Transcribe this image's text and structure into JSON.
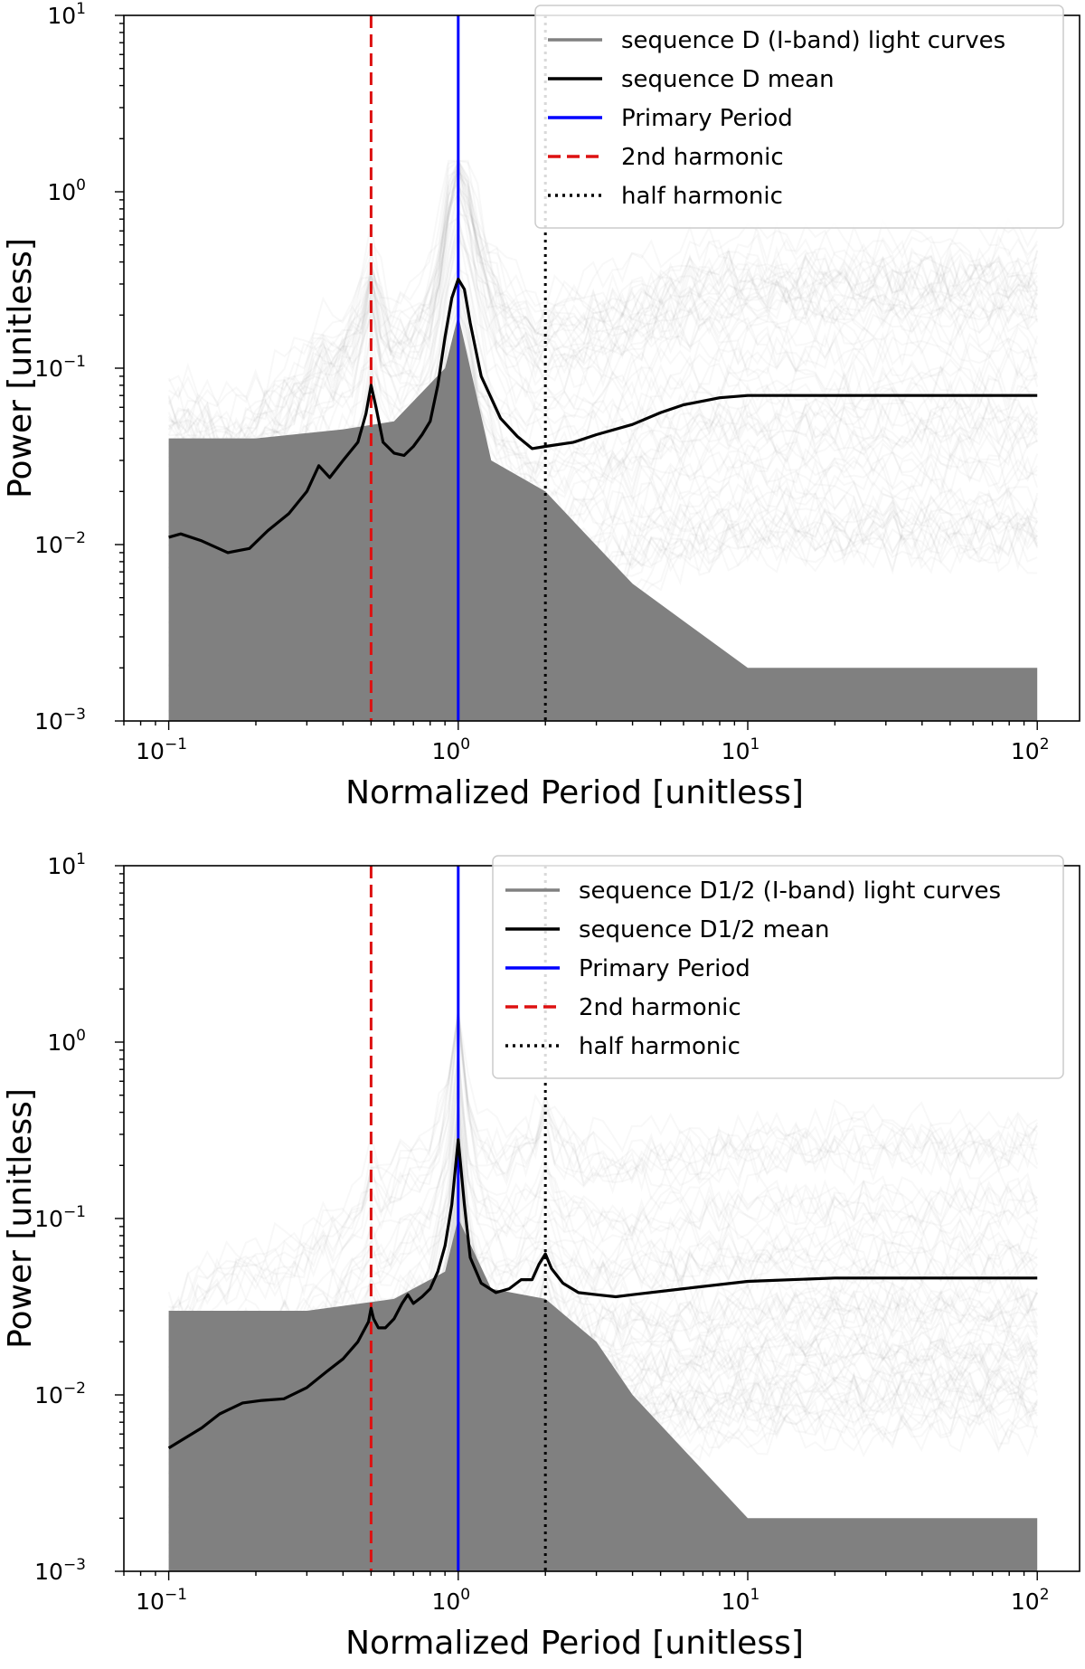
{
  "chart_data": [
    {
      "type": "line",
      "title": "",
      "xlabel": "Normalized Period [unitless]",
      "ylabel": "Power [unitless]",
      "xscale": "log",
      "yscale": "log",
      "xlim": [
        0.07,
        140
      ],
      "ylim": [
        0.001,
        10
      ],
      "x_ticks": [
        "10^-1",
        "10^0",
        "10^1",
        "10^2"
      ],
      "y_ticks": [
        "10^-3",
        "10^-2",
        "10^-1",
        "10^0",
        "10^1"
      ],
      "grid": false,
      "legend_position": "top-right",
      "series": [
        {
          "name": "sequence D (I-band) light curves",
          "color": "#808080",
          "style": "band",
          "x": [
            0.1,
            0.2,
            0.4,
            0.6,
            0.9,
            1.0,
            1.3,
            2.0,
            4.0,
            10,
            100
          ],
          "lower": [
            0.001,
            0.001,
            0.001,
            0.001,
            0.001,
            0.001,
            0.001,
            0.001,
            0.001,
            0.001,
            0.001
          ],
          "upper": [
            0.04,
            0.04,
            0.045,
            0.05,
            0.1,
            0.2,
            0.03,
            0.02,
            0.006,
            0.002,
            0.002
          ]
        },
        {
          "name": "sequence D mean",
          "color": "#000000",
          "style": "solid",
          "x": [
            0.1,
            0.11,
            0.13,
            0.16,
            0.19,
            0.22,
            0.26,
            0.3,
            0.33,
            0.36,
            0.4,
            0.45,
            0.48,
            0.5,
            0.52,
            0.55,
            0.6,
            0.65,
            0.7,
            0.75,
            0.8,
            0.85,
            0.9,
            0.95,
            1.0,
            1.05,
            1.1,
            1.2,
            1.4,
            1.6,
            1.8,
            2.0,
            2.5,
            3.0,
            4.0,
            5.0,
            6.0,
            8.0,
            10,
            20,
            50,
            100
          ],
          "values": [
            0.011,
            0.0115,
            0.0105,
            0.009,
            0.0095,
            0.012,
            0.015,
            0.02,
            0.028,
            0.024,
            0.03,
            0.038,
            0.055,
            0.08,
            0.06,
            0.038,
            0.033,
            0.032,
            0.036,
            0.042,
            0.05,
            0.08,
            0.15,
            0.25,
            0.32,
            0.28,
            0.18,
            0.09,
            0.052,
            0.041,
            0.035,
            0.036,
            0.038,
            0.042,
            0.048,
            0.056,
            0.062,
            0.068,
            0.07,
            0.07,
            0.07,
            0.07
          ]
        },
        {
          "name": "Primary Period",
          "color": "#0000ff",
          "style": "vertical",
          "x": [
            1.0
          ]
        },
        {
          "name": "2nd harmonic",
          "color": "#dd1111",
          "style": "dashed",
          "x": [
            0.5
          ]
        },
        {
          "name": "half harmonic",
          "color": "#000000",
          "style": "dotted",
          "x": [
            2.0
          ]
        }
      ]
    },
    {
      "type": "line",
      "title": "",
      "xlabel": "Normalized Period [unitless]",
      "ylabel": "Power [unitless]",
      "xscale": "log",
      "yscale": "log",
      "xlim": [
        0.07,
        140
      ],
      "ylim": [
        0.001,
        10
      ],
      "x_ticks": [
        "10^-1",
        "10^0",
        "10^1",
        "10^2"
      ],
      "y_ticks": [
        "10^-3",
        "10^-2",
        "10^-1",
        "10^0",
        "10^1"
      ],
      "grid": false,
      "legend_position": "top-right",
      "series": [
        {
          "name": "sequence D1/2 (I-band) light curves",
          "color": "#808080",
          "style": "band",
          "x": [
            0.1,
            0.3,
            0.6,
            0.9,
            1.0,
            1.3,
            2.0,
            3.0,
            4.0,
            10,
            100
          ],
          "lower": [
            0.001,
            0.001,
            0.001,
            0.001,
            0.001,
            0.001,
            0.001,
            0.001,
            0.001,
            0.001,
            0.001
          ],
          "upper": [
            0.03,
            0.03,
            0.035,
            0.05,
            0.1,
            0.04,
            0.035,
            0.02,
            0.01,
            0.002,
            0.002
          ]
        },
        {
          "name": "sequence D1/2 mean",
          "color": "#000000",
          "style": "solid",
          "x": [
            0.1,
            0.11,
            0.13,
            0.15,
            0.18,
            0.21,
            0.25,
            0.3,
            0.35,
            0.4,
            0.45,
            0.49,
            0.5,
            0.51,
            0.53,
            0.56,
            0.6,
            0.64,
            0.67,
            0.7,
            0.75,
            0.8,
            0.85,
            0.9,
            0.95,
            1.0,
            1.05,
            1.1,
            1.2,
            1.35,
            1.5,
            1.65,
            1.8,
            1.9,
            2.0,
            2.1,
            2.3,
            2.6,
            3.0,
            3.5,
            4.0,
            6.0,
            10,
            20,
            50,
            100
          ],
          "values": [
            0.005,
            0.0055,
            0.0065,
            0.0078,
            0.009,
            0.0093,
            0.0095,
            0.011,
            0.0135,
            0.016,
            0.02,
            0.026,
            0.031,
            0.027,
            0.024,
            0.024,
            0.027,
            0.033,
            0.037,
            0.033,
            0.036,
            0.04,
            0.05,
            0.07,
            0.12,
            0.28,
            0.12,
            0.06,
            0.043,
            0.038,
            0.04,
            0.045,
            0.045,
            0.055,
            0.063,
            0.052,
            0.043,
            0.038,
            0.037,
            0.036,
            0.037,
            0.04,
            0.044,
            0.046,
            0.046,
            0.046
          ]
        },
        {
          "name": "Primary Period",
          "color": "#0000ff",
          "style": "vertical",
          "x": [
            1.0
          ]
        },
        {
          "name": "2nd harmonic",
          "color": "#dd1111",
          "style": "dashed",
          "x": [
            0.5
          ]
        },
        {
          "name": "half harmonic",
          "color": "#000000",
          "style": "dotted",
          "x": [
            2.0
          ]
        }
      ]
    }
  ]
}
